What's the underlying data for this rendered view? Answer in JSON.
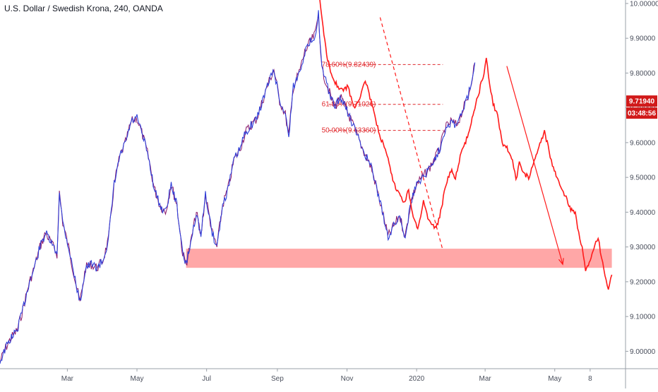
{
  "header": {
    "title": "U.S. Dollar / Swedish Krona, 240, OANDA"
  },
  "colors": {
    "price_up": "#2f3fd8",
    "price_down": "#8b1a6b",
    "projection": "#ff1a1a",
    "support_zone": "#ff8a8a",
    "fib_line": "#e0282c",
    "tag_bg": "#d11a1a",
    "axis_line": "#9aa0a8"
  },
  "chart_data": {
    "type": "line",
    "title": "U.S. Dollar / Swedish Krona, 240, OANDA",
    "x_axis": {
      "labels": [
        "Mar",
        "May",
        "Jul",
        "Sep",
        "Nov",
        "2020",
        "Mar",
        "May",
        "8"
      ],
      "label_days": [
        59,
        120,
        181,
        243,
        304,
        365,
        425,
        486,
        517
      ],
      "xlim_days": [
        0,
        548
      ]
    },
    "y_axis": {
      "ticks": [
        "10.00000",
        "9.90000",
        "9.80000",
        "9.70000",
        "9.60000",
        "9.50000",
        "9.40000",
        "9.30000",
        "9.20000",
        "9.10000",
        "9.00000"
      ],
      "tick_values": [
        10.0,
        9.9,
        9.8,
        9.7,
        9.6,
        9.5,
        9.4,
        9.3,
        9.2,
        9.1,
        9.0
      ],
      "ylim": [
        8.95,
        10.01
      ]
    },
    "series": [
      {
        "kind": "price",
        "points_day_value": [
          [
            0,
            8.97
          ],
          [
            5,
            9.01
          ],
          [
            10,
            9.04
          ],
          [
            15,
            9.06
          ],
          [
            20,
            9.12
          ],
          [
            25,
            9.19
          ],
          [
            30,
            9.24
          ],
          [
            35,
            9.3
          ],
          [
            40,
            9.34
          ],
          [
            45,
            9.31
          ],
          [
            50,
            9.28
          ],
          [
            52,
            9.46
          ],
          [
            55,
            9.37
          ],
          [
            60,
            9.3
          ],
          [
            65,
            9.22
          ],
          [
            70,
            9.14
          ],
          [
            75,
            9.24
          ],
          [
            80,
            9.25
          ],
          [
            85,
            9.24
          ],
          [
            90,
            9.26
          ],
          [
            95,
            9.32
          ],
          [
            100,
            9.48
          ],
          [
            105,
            9.56
          ],
          [
            110,
            9.6
          ],
          [
            115,
            9.66
          ],
          [
            120,
            9.67
          ],
          [
            125,
            9.62
          ],
          [
            130,
            9.56
          ],
          [
            135,
            9.47
          ],
          [
            140,
            9.42
          ],
          [
            145,
            9.4
          ],
          [
            150,
            9.48
          ],
          [
            155,
            9.42
          ],
          [
            160,
            9.28
          ],
          [
            163,
            9.25
          ],
          [
            167,
            9.31
          ],
          [
            172,
            9.4
          ],
          [
            176,
            9.33
          ],
          [
            180,
            9.45
          ],
          [
            186,
            9.34
          ],
          [
            190,
            9.3
          ],
          [
            195,
            9.42
          ],
          [
            200,
            9.47
          ],
          [
            205,
            9.55
          ],
          [
            210,
            9.58
          ],
          [
            215,
            9.63
          ],
          [
            220,
            9.65
          ],
          [
            225,
            9.67
          ],
          [
            230,
            9.72
          ],
          [
            235,
            9.77
          ],
          [
            240,
            9.81
          ],
          [
            245,
            9.72
          ],
          [
            250,
            9.68
          ],
          [
            253,
            9.62
          ],
          [
            257,
            9.76
          ],
          [
            262,
            9.8
          ],
          [
            267,
            9.86
          ],
          [
            272,
            9.89
          ],
          [
            276,
            9.91
          ],
          [
            279,
            9.97
          ],
          [
            282,
            9.81
          ],
          [
            287,
            9.76
          ],
          [
            293,
            9.7
          ],
          [
            298,
            9.73
          ],
          [
            303,
            9.7
          ],
          [
            308,
            9.66
          ],
          [
            313,
            9.62
          ],
          [
            318,
            9.58
          ],
          [
            325,
            9.53
          ],
          [
            330,
            9.47
          ],
          [
            335,
            9.4
          ],
          [
            340,
            9.33
          ],
          [
            345,
            9.36
          ],
          [
            350,
            9.39
          ],
          [
            355,
            9.33
          ],
          [
            360,
            9.43
          ],
          [
            365,
            9.48
          ],
          [
            370,
            9.5
          ],
          [
            375,
            9.52
          ],
          [
            380,
            9.55
          ],
          [
            385,
            9.58
          ],
          [
            390,
            9.64
          ],
          [
            395,
            9.66
          ],
          [
            400,
            9.65
          ],
          [
            405,
            9.69
          ],
          [
            410,
            9.73
          ],
          [
            413,
            9.78
          ],
          [
            416,
            9.83
          ]
        ]
      },
      {
        "kind": "projection",
        "points_day_value": [
          [
            280,
            10.01
          ],
          [
            283,
            9.93
          ],
          [
            287,
            9.84
          ],
          [
            292,
            9.78
          ],
          [
            297,
            9.76
          ],
          [
            300,
            9.75
          ],
          [
            305,
            9.76
          ],
          [
            310,
            9.7
          ],
          [
            315,
            9.73
          ],
          [
            320,
            9.78
          ],
          [
            325,
            9.72
          ],
          [
            330,
            9.65
          ],
          [
            335,
            9.6
          ],
          [
            340,
            9.55
          ],
          [
            345,
            9.48
          ],
          [
            350,
            9.45
          ],
          [
            354,
            9.43
          ],
          [
            358,
            9.46
          ],
          [
            362,
            9.39
          ],
          [
            366,
            9.35
          ],
          [
            371,
            9.43
          ],
          [
            374,
            9.39
          ],
          [
            378,
            9.37
          ],
          [
            382,
            9.35
          ],
          [
            386,
            9.4
          ],
          [
            390,
            9.47
          ],
          [
            395,
            9.52
          ],
          [
            399,
            9.5
          ],
          [
            404,
            9.57
          ],
          [
            408,
            9.6
          ],
          [
            412,
            9.65
          ],
          [
            416,
            9.7
          ],
          [
            420,
            9.75
          ],
          [
            424,
            9.8
          ],
          [
            426,
            9.84
          ],
          [
            429,
            9.77
          ],
          [
            432,
            9.71
          ],
          [
            436,
            9.68
          ],
          [
            440,
            9.6
          ],
          [
            445,
            9.58
          ],
          [
            449,
            9.55
          ],
          [
            452,
            9.49
          ],
          [
            455,
            9.54
          ],
          [
            459,
            9.51
          ],
          [
            464,
            9.5
          ],
          [
            468,
            9.55
          ],
          [
            473,
            9.6
          ],
          [
            477,
            9.63
          ],
          [
            481,
            9.58
          ],
          [
            484,
            9.53
          ],
          [
            488,
            9.5
          ],
          [
            492,
            9.47
          ],
          [
            496,
            9.44
          ],
          [
            500,
            9.41
          ],
          [
            504,
            9.4
          ],
          [
            507,
            9.34
          ],
          [
            510,
            9.3
          ],
          [
            513,
            9.23
          ],
          [
            517,
            9.26
          ],
          [
            521,
            9.3
          ],
          [
            524,
            9.33
          ],
          [
            527,
            9.27
          ],
          [
            530,
            9.22
          ],
          [
            533,
            9.18
          ],
          [
            536,
            9.22
          ]
        ]
      }
    ],
    "support_zone": {
      "top": 9.295,
      "bottom": 9.24,
      "from_day": 163,
      "to_day": 536
    },
    "fibonacci": [
      {
        "label": "78.60%(9.82439)",
        "value": 9.82439
      },
      {
        "label": "61.80%(9.71026)",
        "value": 9.71
      },
      {
        "label": "50.00%(9.63360)",
        "value": 9.635
      }
    ],
    "fib_from_day": 288,
    "fib_to_day": 388,
    "trend_line_dashed": {
      "from": [
        333,
        9.96
      ],
      "to": [
        388,
        9.29
      ]
    },
    "arrow": {
      "from": [
        444,
        9.82
      ],
      "to": [
        493,
        9.25
      ]
    },
    "current_price": "9.71940",
    "current_price_value": 9.7194,
    "countdown": "03:48:56"
  }
}
